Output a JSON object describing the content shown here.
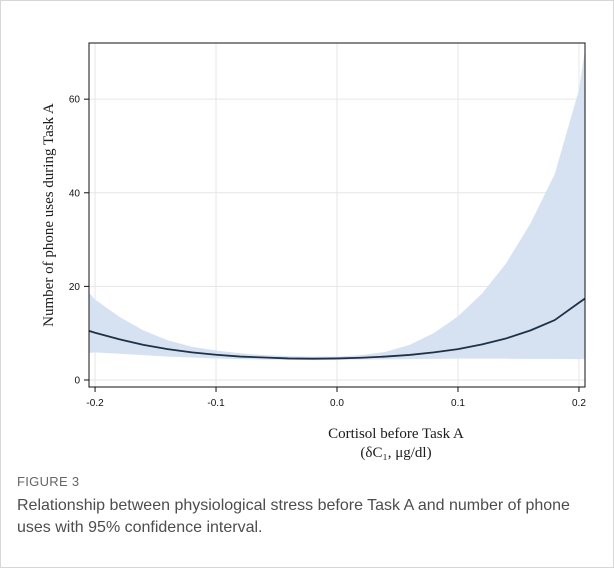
{
  "figure": {
    "label": "FIGURE 3",
    "caption": "Relationship between physiological stress before Task A and number of phone uses with 95% confidence interval."
  },
  "chart_data": {
    "type": "line",
    "title": "",
    "xlabel_line1": "Cortisol before Task A",
    "xlabel_line2": "(δC₁, μg/dl)",
    "ylabel": "Number of phone uses during Task A",
    "xlim": [
      -0.205,
      0.205
    ],
    "ylim": [
      -1.5,
      72
    ],
    "x_ticks": [
      -0.2,
      -0.1,
      0.0,
      0.1,
      0.2
    ],
    "x_tick_labels": [
      "-0.2",
      "-0.1",
      "0.0",
      "0.1",
      "0.2"
    ],
    "y_ticks": [
      0,
      20,
      40,
      60
    ],
    "y_tick_labels": [
      "0",
      "20",
      "40",
      "60"
    ],
    "grid": true,
    "legend": "none",
    "x": [
      -0.205,
      -0.2,
      -0.18,
      -0.16,
      -0.14,
      -0.12,
      -0.1,
      -0.08,
      -0.06,
      -0.04,
      -0.02,
      0.0,
      0.02,
      0.04,
      0.06,
      0.08,
      0.1,
      0.12,
      0.14,
      0.16,
      0.18,
      0.2,
      0.205
    ],
    "series": [
      {
        "values": [
          10.5,
          10.1,
          8.7,
          7.5,
          6.6,
          5.9,
          5.4,
          5.0,
          4.8,
          4.6,
          4.55,
          4.6,
          4.75,
          5.0,
          5.35,
          5.9,
          6.6,
          7.6,
          8.9,
          10.6,
          12.8,
          16.5,
          17.4
        ],
        "lower": [
          5.8,
          5.9,
          5.6,
          5.3,
          5.0,
          4.8,
          4.6,
          4.45,
          4.35,
          4.3,
          4.25,
          4.3,
          4.35,
          4.4,
          4.45,
          4.5,
          4.55,
          4.55,
          4.55,
          4.5,
          4.5,
          4.45,
          4.45
        ],
        "upper": [
          18.6,
          17.2,
          13.5,
          10.6,
          8.5,
          7.1,
          6.3,
          5.7,
          5.3,
          5.1,
          5.0,
          5.0,
          5.3,
          6.0,
          7.5,
          10.0,
          13.6,
          18.5,
          25.0,
          33.5,
          44.0,
          62.0,
          70.5
        ],
        "line_color": "#1f3147",
        "band_color": "#d6e2f2"
      }
    ]
  }
}
